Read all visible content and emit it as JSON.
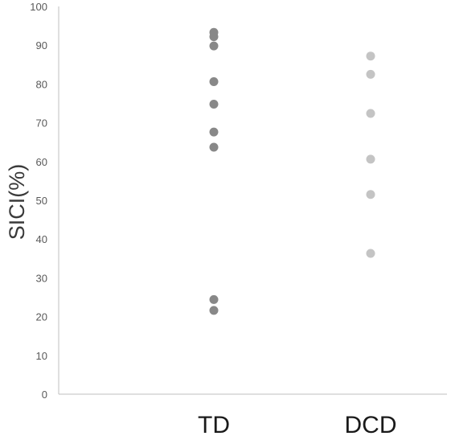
{
  "chart_data": {
    "type": "scatter",
    "title": "",
    "xlabel": "",
    "ylabel": "SICI(%)",
    "ylim": [
      0,
      100
    ],
    "yticks": [
      0,
      10,
      20,
      30,
      40,
      50,
      60,
      70,
      80,
      90,
      100
    ],
    "categories": [
      "TD",
      "DCD"
    ],
    "grid": false,
    "legend": "none",
    "series": [
      {
        "category": "TD",
        "color": "#888888",
        "values": [
          93.3,
          92.2,
          89.8,
          80.6,
          74.8,
          67.6,
          63.7,
          24.4,
          21.6
        ]
      },
      {
        "category": "DCD",
        "color": "#c4c4c4",
        "values": [
          87.2,
          82.5,
          72.4,
          60.6,
          51.5,
          36.3
        ]
      }
    ]
  }
}
